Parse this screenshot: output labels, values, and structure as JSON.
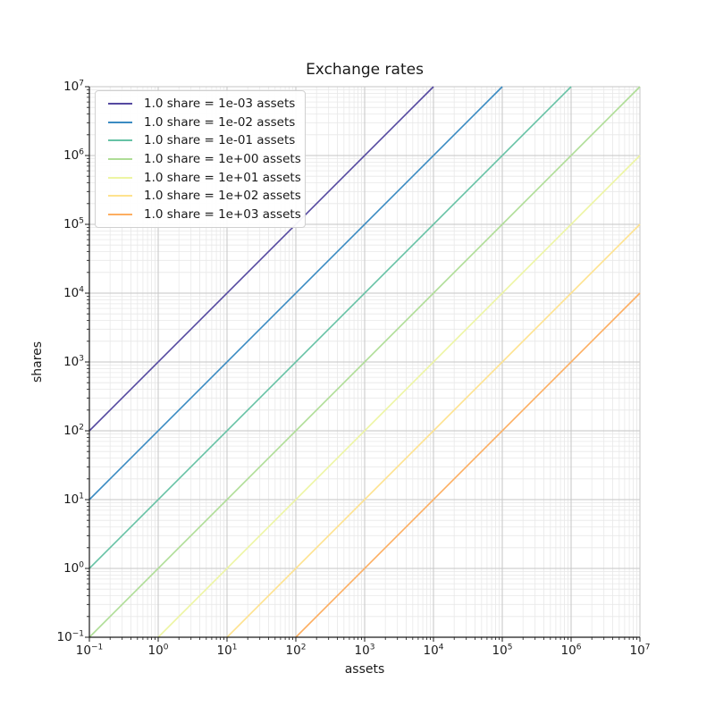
{
  "chart_data": {
    "type": "line",
    "title": "Exchange rates",
    "xlabel": "assets",
    "ylabel": "shares",
    "x_scale": "log",
    "y_scale": "log",
    "xlim": [
      0.1,
      10000000
    ],
    "ylim": [
      0.1,
      10000000
    ],
    "x_tick_exponents": [
      -1,
      0,
      1,
      2,
      3,
      4,
      5,
      6,
      7
    ],
    "y_tick_exponents": [
      -1,
      0,
      1,
      2,
      3,
      4,
      5,
      6,
      7
    ],
    "grid": "major+minor",
    "legend_position": "upper left",
    "series": [
      {
        "label": "1.0 share = 1e-03 assets",
        "rate_assets_per_share": 0.001,
        "slope": 1,
        "color": "#5549a0",
        "points": [
          [
            0.1,
            100
          ],
          [
            10000,
            10000000
          ]
        ]
      },
      {
        "label": "1.0 share = 1e-02 assets",
        "rate_assets_per_share": 0.01,
        "slope": 1,
        "color": "#3a8bc2",
        "points": [
          [
            0.1,
            10
          ],
          [
            100000,
            10000000
          ]
        ]
      },
      {
        "label": "1.0 share = 1e-01 assets",
        "rate_assets_per_share": 0.1,
        "slope": 1,
        "color": "#66c2a5",
        "points": [
          [
            0.1,
            1
          ],
          [
            1000000,
            10000000
          ]
        ]
      },
      {
        "label": "1.0 share = 1e+00 assets",
        "rate_assets_per_share": 1,
        "slope": 1,
        "color": "#aedd96",
        "points": [
          [
            0.1,
            0.1
          ],
          [
            10000000,
            10000000
          ]
        ]
      },
      {
        "label": "1.0 share = 1e+01 assets",
        "rate_assets_per_share": 10,
        "slope": 1,
        "color": "#edf5a3",
        "points": [
          [
            1,
            0.1
          ],
          [
            10000000,
            1000000
          ]
        ]
      },
      {
        "label": "1.0 share = 1e+02 assets",
        "rate_assets_per_share": 100,
        "slope": 1,
        "color": "#fee28e",
        "points": [
          [
            10,
            0.1
          ],
          [
            10000000,
            100000
          ]
        ]
      },
      {
        "label": "1.0 share = 1e+03 assets",
        "rate_assets_per_share": 1000,
        "slope": 1,
        "color": "#fdae61",
        "points": [
          [
            100,
            0.1
          ],
          [
            10000000,
            10000
          ]
        ]
      }
    ],
    "colors": {
      "grid_major": "#c6c6c6",
      "grid_minor": "#e8e8e8",
      "spine": "#1a1a1a",
      "text": "#1a1a1a",
      "legend_border": "#d0d0d0",
      "background": "#ffffff"
    }
  }
}
